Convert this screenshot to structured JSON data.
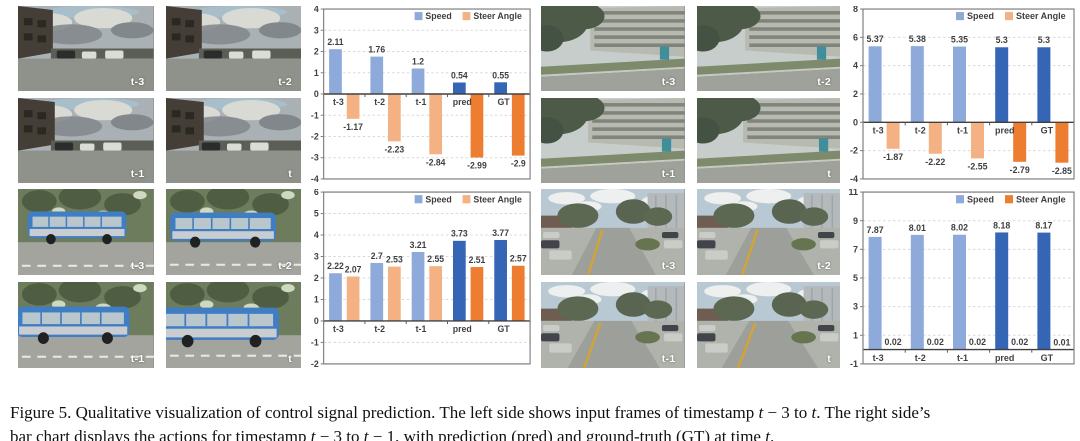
{
  "caption": {
    "segments": [
      {
        "t": "Figure 5. Qualitative visualization of control signal prediction. The left side shows input frames of timestamp "
      },
      {
        "t": "t",
        "i": true
      },
      {
        "t": " − 3 to "
      },
      {
        "t": "t",
        "i": true
      },
      {
        "t": ". The right side’s"
      },
      {
        "br": true
      },
      {
        "t": "bar chart displays the actions for timestamp "
      },
      {
        "t": "t",
        "i": true
      },
      {
        "t": " − 3 to "
      },
      {
        "t": "t",
        "i": true
      },
      {
        "t": " − 1, with prediction (pred) and ground-truth (GT) at time "
      },
      {
        "t": "t",
        "i": true
      },
      {
        "t": "."
      }
    ]
  },
  "legend_labels": {
    "speed": "Speed",
    "steer": "Steer Angle"
  },
  "colors": {
    "speed_light": "#8EAADB",
    "speed_dark": "#3565B5",
    "steer_light": "#F4B183",
    "steer_dark": "#ED7D31",
    "grid": "#D9D9D9",
    "zero_axis": "#404040",
    "chart_border": "#808080",
    "tick_text": "#404040"
  },
  "quadrants": [
    {
      "scene": "overcast-intersection",
      "frames": [
        "t-3",
        "t-2",
        "t-1",
        "t"
      ]
    },
    {
      "scene": "apartment-street",
      "frames": [
        "t-3",
        "t-2",
        "t-1",
        "t"
      ]
    },
    {
      "scene": "bus-approach",
      "frames": [
        "t-3",
        "t-2",
        "t-1",
        "t"
      ]
    },
    {
      "scene": "residential-street",
      "frames": [
        "t-3",
        "t-2",
        "t-1",
        "t"
      ]
    }
  ],
  "chart_data": [
    {
      "type": "bar",
      "categories": [
        "t-3",
        "t-2",
        "t-1",
        "pred",
        "GT"
      ],
      "series": [
        {
          "name": "Speed",
          "values": [
            2.11,
            1.76,
            1.2,
            0.54,
            0.55
          ]
        },
        {
          "name": "Steer Angle",
          "values": [
            -1.17,
            -2.23,
            -2.84,
            -2.99,
            -2.9
          ]
        }
      ],
      "speed_labels": [
        "2.11",
        "1.76",
        "1.2",
        "0.54",
        "0.55"
      ],
      "steer_labels": [
        "-1.17",
        "-2.23",
        "-2.84",
        "-2.99",
        "-2.9"
      ],
      "ylim": [
        -4,
        4
      ],
      "yticks": [
        "4",
        "3",
        "2",
        "1",
        "0",
        "-1",
        "-2",
        "-3",
        "-4"
      ],
      "highlight_from": 3,
      "legend_position": "top-right",
      "legend_steer_swatch": "light",
      "grid": true
    },
    {
      "type": "bar",
      "categories": [
        "t-3",
        "t-2",
        "t-1",
        "pred",
        "GT"
      ],
      "series": [
        {
          "name": "Speed",
          "values": [
            5.37,
            5.38,
            5.35,
            5.3,
            5.3
          ]
        },
        {
          "name": "Steer Angle",
          "values": [
            -1.87,
            -2.22,
            -2.55,
            -2.79,
            -2.85
          ]
        }
      ],
      "speed_labels": [
        "5.37",
        "5.38",
        "5.35",
        "5.3",
        "5.3"
      ],
      "steer_labels": [
        "-1.87",
        "-2.22",
        "-2.55",
        "-2.79",
        "-2.85"
      ],
      "ylim": [
        -4,
        8
      ],
      "yticks": [
        "8",
        "6",
        "4",
        "2",
        "0",
        "-2",
        "-4"
      ],
      "highlight_from": 3,
      "legend_position": "top-right",
      "legend_steer_swatch": "light",
      "grid": true
    },
    {
      "type": "bar",
      "categories": [
        "t-3",
        "t-2",
        "t-1",
        "pred",
        "GT"
      ],
      "series": [
        {
          "name": "Speed",
          "values": [
            2.22,
            2.7,
            3.21,
            3.73,
            3.77
          ]
        },
        {
          "name": "Steer Angle",
          "values": [
            2.07,
            2.53,
            2.55,
            2.51,
            2.57
          ]
        }
      ],
      "speed_labels": [
        "2.22",
        "2.7",
        "3.21",
        "3.73",
        "3.77"
      ],
      "steer_labels": [
        "2.07",
        "2.53",
        "2.55",
        "2.51",
        "2.57"
      ],
      "ylim": [
        -2,
        6
      ],
      "yticks": [
        "6",
        "5",
        "4",
        "3",
        "2",
        "1",
        "0",
        "-1",
        "-2"
      ],
      "highlight_from": 3,
      "legend_position": "top-right",
      "legend_steer_swatch": "light",
      "grid": true
    },
    {
      "type": "bar",
      "categories": [
        "t-3",
        "t-2",
        "t-1",
        "pred",
        "GT"
      ],
      "series": [
        {
          "name": "Speed",
          "values": [
            7.87,
            8.01,
            8.02,
            8.18,
            8.17
          ]
        },
        {
          "name": "Steer Angle",
          "values": [
            0.02,
            0.02,
            0.02,
            0.02,
            0.01
          ]
        }
      ],
      "speed_labels": [
        "7.87",
        "8.01",
        "8.02",
        "8.18",
        "8.17"
      ],
      "steer_labels": [
        "0.02",
        "0.02",
        "0.02",
        "0.02",
        "0.01"
      ],
      "ylim": [
        -1,
        11
      ],
      "yticks": [
        "11",
        "9",
        "7",
        "5",
        "3",
        "1",
        "-1"
      ],
      "highlight_from": 3,
      "legend_position": "top-right",
      "legend_steer_swatch": "dark",
      "grid": true
    }
  ],
  "scenes": {
    "overcast-intersection": {
      "sky": "#aab1b4",
      "sky_blue": "#a9becb",
      "cloud": "#d8dad3",
      "cloud_dark": "#81878a",
      "building": "#443e36",
      "strip": "#5b5e55",
      "car_dark": "#2b2d2c",
      "car_light": "#dadcd6",
      "road": "#8f918b"
    },
    "apartment-street": {
      "sky": "#c6cdca",
      "trees": "#4e5a48",
      "trees_dark": "#435242",
      "building": "#b7bab0",
      "window": "#80847a",
      "grass": "#7d8a6b",
      "booth": "#3f8e99",
      "road": "#9fa19b",
      "curb": "#c8c9c2"
    },
    "bus-approach": {
      "trees": "#6d7c5c",
      "trees_dark": "#4f5e42",
      "light": "#cfd8c0",
      "road": "#a3a49e",
      "lane": "#e8e8e4",
      "bus": "#3f7dc4",
      "bus_window": "#b9c6cc",
      "bus_band": "#c9cdd0",
      "wheel": "#1f2122"
    },
    "residential-street": {
      "sky": "#b9c9d4",
      "cloud": "#edf0ee",
      "trees": "#5c6852",
      "trees_right": "#596550",
      "bldg_left": "#6f5d52",
      "bldg_right": "#b4b9bb",
      "side": "#b0b2ac",
      "road": "#9d9f9a",
      "line": "#d1a43a"
    }
  }
}
